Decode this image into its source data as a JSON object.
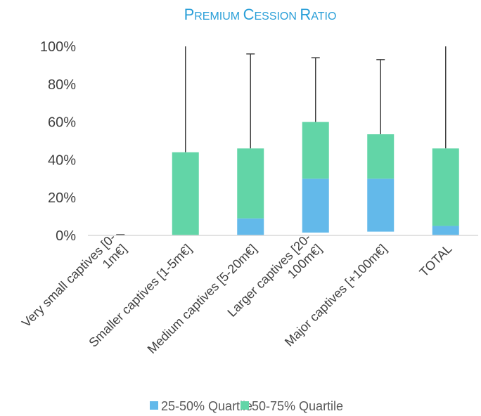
{
  "chart_data": {
    "type": "bar",
    "title": "Premium cession ratio",
    "categories": [
      [
        "Very small captives [0-",
        "1m€]"
      ],
      [
        "Smaller captives [1-5m€]"
      ],
      [
        "Medium captives [5-20m€]"
      ],
      [
        "Larger captives [20-",
        "100m€]"
      ],
      [
        "Major captives [+100m€]"
      ],
      [
        "TOTAL"
      ]
    ],
    "ylim": [
      0,
      100
    ],
    "yticks": [
      0,
      20,
      40,
      60,
      80,
      100
    ],
    "ytick_labels": [
      "0%",
      "20%",
      "40%",
      "60%",
      "80%",
      "100%"
    ],
    "stats": [
      {
        "min": 0,
        "q1": 0,
        "median": 0,
        "q3": 0,
        "max": 0
      },
      {
        "min": 0,
        "q1": 0,
        "median": 0,
        "q3": 44,
        "max": 100
      },
      {
        "min": 0,
        "q1": 0,
        "median": 9,
        "q3": 46,
        "max": 96
      },
      {
        "min": 0,
        "q1": 1.5,
        "median": 30,
        "q3": 60,
        "max": 94
      },
      {
        "min": 0,
        "q1": 2,
        "median": 30,
        "q3": 53.5,
        "max": 93
      },
      {
        "min": 0,
        "q1": 0,
        "median": 5,
        "q3": 46,
        "max": 100
      }
    ],
    "series": [
      {
        "name": "25-50% Quartile",
        "color": "#63b9ea"
      },
      {
        "name": "50-75% Quartile",
        "color": "#62d5a7"
      }
    ],
    "whisker_color": "#404040",
    "axis_color": "#d9d9d9",
    "legend_position": "bottom"
  }
}
